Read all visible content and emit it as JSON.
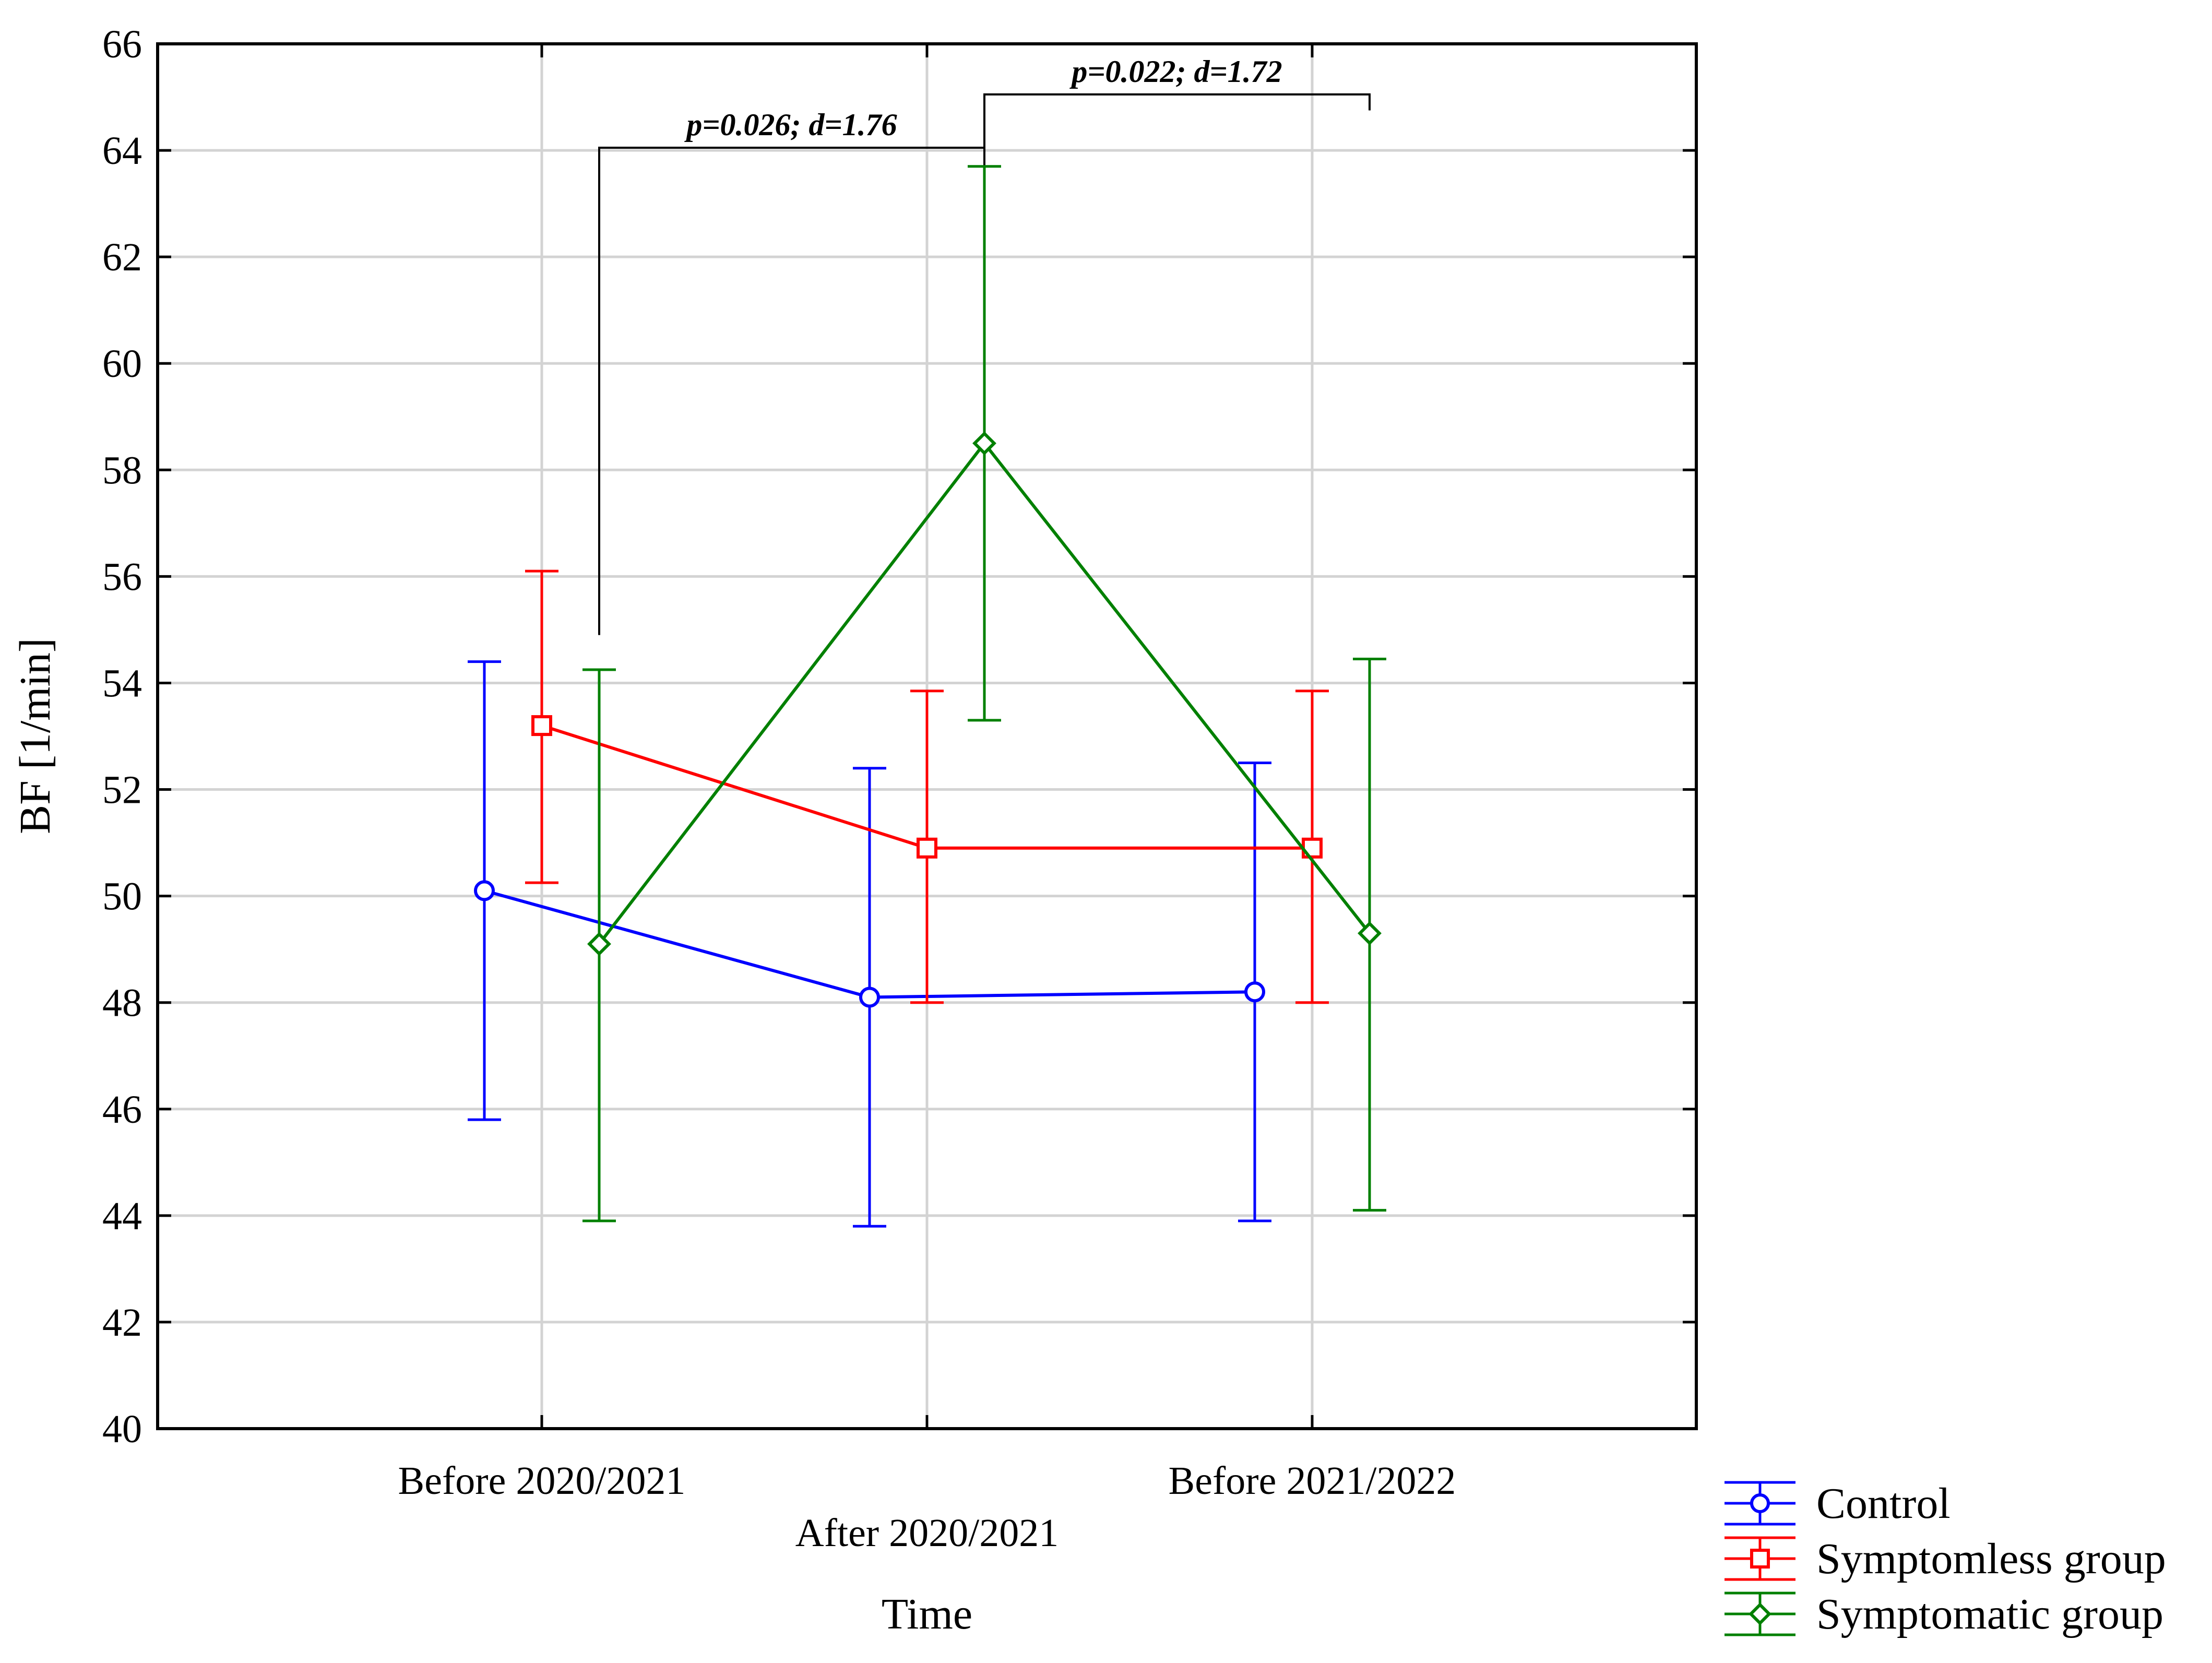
{
  "chart_data": {
    "type": "line",
    "title": "",
    "xlabel": "Time",
    "ylabel": "BF [1/min]",
    "ylim": [
      40,
      66
    ],
    "yticks": [
      40,
      42,
      44,
      46,
      48,
      50,
      52,
      54,
      56,
      58,
      60,
      62,
      64,
      66
    ],
    "categories": [
      "Before 2020/2021",
      "After 2020/2021",
      "Before 2021/2022"
    ],
    "grid": true,
    "legend_position": "bottom-right, outside plot",
    "error_bars": true,
    "series": [
      {
        "name": "Control",
        "color": "#0000ff",
        "marker": "circle",
        "values": [
          50.1,
          48.1,
          48.2
        ],
        "lower": [
          45.8,
          43.8,
          43.9
        ],
        "upper": [
          54.4,
          52.4,
          52.5
        ]
      },
      {
        "name": "Symptomless group",
        "color": "#ff0000",
        "marker": "square",
        "values": [
          53.2,
          50.9,
          50.9
        ],
        "lower": [
          50.25,
          48.0,
          48.0
        ],
        "upper": [
          56.1,
          53.85,
          53.85
        ]
      },
      {
        "name": "Symptomatic group",
        "color": "#008000",
        "marker": "diamond",
        "values": [
          49.1,
          58.5,
          49.3
        ],
        "lower": [
          43.9,
          53.3,
          44.1
        ],
        "upper": [
          54.25,
          63.7,
          54.45
        ]
      }
    ],
    "annotations": [
      {
        "text": "p=0.026; d=1.76",
        "from_category": 0,
        "to_category": 1,
        "series": 2,
        "bracket_y": 64.05,
        "leg_bottom": 54.9
      },
      {
        "text": "p=0.022; d=1.72",
        "from_category": 1,
        "to_category": 2,
        "series": 2,
        "bracket_y": 65.05,
        "leg_bottom": 54.9
      }
    ]
  }
}
